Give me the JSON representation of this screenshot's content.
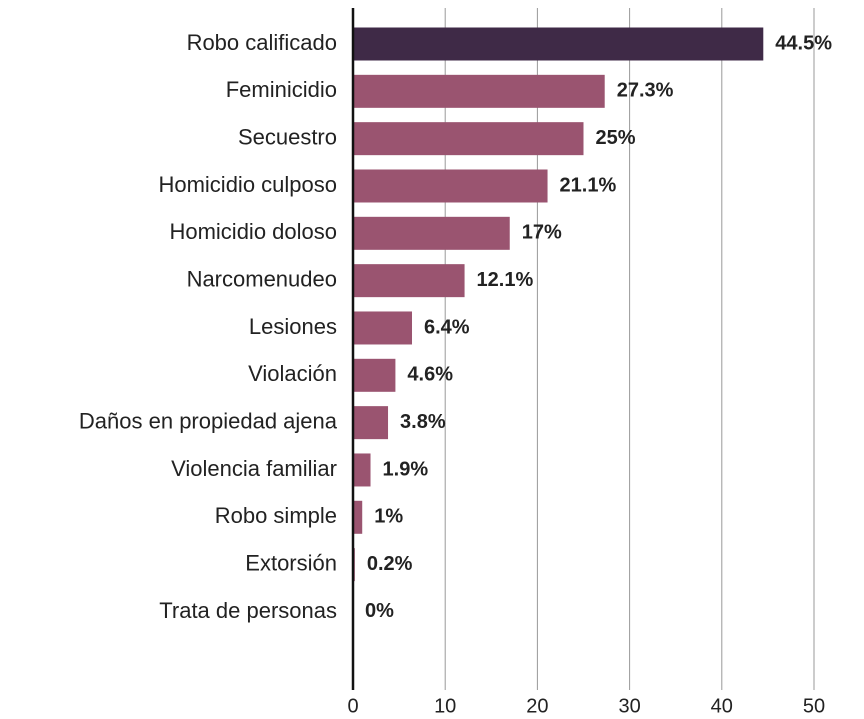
{
  "chart_data": {
    "type": "bar",
    "orientation": "horizontal",
    "categories": [
      "Robo calificado",
      "Feminicidio",
      "Secuestro",
      "Homicidio culposo",
      "Homicidio doloso",
      "Narcomenudeo",
      "Lesiones",
      "Violación",
      "Daños en propiedad ajena",
      "Violencia familiar",
      "Robo simple",
      "Extorsión",
      "Trata de personas"
    ],
    "values": [
      44.5,
      27.3,
      25,
      21.1,
      17,
      12.1,
      6.4,
      4.6,
      3.8,
      1.9,
      1,
      0.2,
      0
    ],
    "value_labels": [
      "44.5%",
      "27.3%",
      "25%",
      "21.1%",
      "17%",
      "12.1%",
      "6.4%",
      "4.6%",
      "3.8%",
      "1.9%",
      "1%",
      "0.2%",
      "0%"
    ],
    "colors": [
      "#3f2a47",
      "#9a5470",
      "#9a5470",
      "#9a5470",
      "#9a5470",
      "#9a5470",
      "#9a5470",
      "#9a5470",
      "#9a5470",
      "#9a5470",
      "#9a5470",
      "#9a5470",
      "#9a5470"
    ],
    "xlim": [
      0,
      50
    ],
    "xticks": [
      0,
      10,
      20,
      30,
      40,
      50
    ],
    "grid": true
  }
}
